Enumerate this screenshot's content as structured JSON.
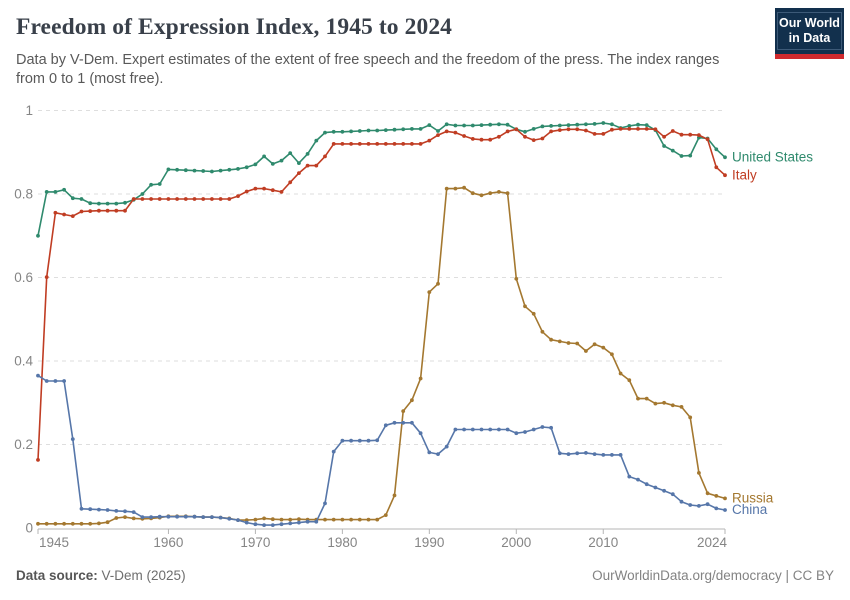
{
  "header": {
    "title": "Freedom of Expression Index, 1945 to 2024",
    "subtitle_lines": [
      "Data by V-Dem. Expert estimates of the extent of free speech and the freedom of the press. The index ranges",
      "from 0 to 1 (most free)."
    ],
    "logo": {
      "line1": "Our World",
      "line2": "in Data"
    }
  },
  "footer": {
    "source_label": "Data source:",
    "source_value": " V-Dem (2025)",
    "credit": "OurWorldinData.org/democracy | CC BY"
  },
  "chart_data": {
    "type": "line",
    "title": "Freedom of Expression Index, 1945 to 2024",
    "xlabel": "",
    "ylabel": "",
    "ylim": [
      0,
      1
    ],
    "grid": "horizontal-dashed",
    "markers": true,
    "legend_position": "line-end-labels",
    "xticks": [
      1945,
      1960,
      1970,
      1980,
      1990,
      2000,
      2010,
      2024
    ],
    "yticks": [
      0,
      0.2,
      0.4,
      0.6,
      0.8,
      1
    ],
    "x": [
      1945,
      1946,
      1947,
      1948,
      1949,
      1950,
      1951,
      1952,
      1953,
      1954,
      1955,
      1956,
      1957,
      1958,
      1959,
      1960,
      1961,
      1962,
      1963,
      1964,
      1965,
      1966,
      1967,
      1968,
      1969,
      1970,
      1971,
      1972,
      1973,
      1974,
      1975,
      1976,
      1977,
      1978,
      1979,
      1980,
      1981,
      1982,
      1983,
      1984,
      1985,
      1986,
      1987,
      1988,
      1989,
      1990,
      1991,
      1992,
      1993,
      1994,
      1995,
      1996,
      1997,
      1998,
      1999,
      2000,
      2001,
      2002,
      2003,
      2004,
      2005,
      2006,
      2007,
      2008,
      2009,
      2010,
      2011,
      2012,
      2013,
      2014,
      2015,
      2016,
      2017,
      2018,
      2019,
      2020,
      2021,
      2022,
      2023,
      2024
    ],
    "series": [
      {
        "name": "United States",
        "color": "#2f8a6d",
        "values": [
          0.7,
          0.805,
          0.805,
          0.81,
          0.79,
          0.788,
          0.778,
          0.777,
          0.777,
          0.777,
          0.779,
          0.786,
          0.8,
          0.822,
          0.824,
          0.859,
          0.858,
          0.857,
          0.856,
          0.855,
          0.854,
          0.856,
          0.858,
          0.86,
          0.864,
          0.871,
          0.89,
          0.872,
          0.88,
          0.898,
          0.874,
          0.896,
          0.928,
          0.947,
          0.949,
          0.949,
          0.95,
          0.951,
          0.952,
          0.952,
          0.953,
          0.954,
          0.955,
          0.956,
          0.956,
          0.965,
          0.951,
          0.967,
          0.964,
          0.964,
          0.964,
          0.965,
          0.966,
          0.967,
          0.966,
          0.955,
          0.949,
          0.956,
          0.962,
          0.963,
          0.964,
          0.965,
          0.966,
          0.967,
          0.968,
          0.97,
          0.967,
          0.958,
          0.963,
          0.966,
          0.965,
          0.953,
          0.915,
          0.904,
          0.891,
          0.892,
          0.935,
          0.933,
          0.907,
          0.888
        ]
      },
      {
        "name": "Italy",
        "color": "#c03d23",
        "values": [
          0.163,
          0.601,
          0.755,
          0.751,
          0.747,
          0.758,
          0.759,
          0.76,
          0.76,
          0.76,
          0.76,
          0.788,
          0.788,
          0.788,
          0.788,
          0.788,
          0.788,
          0.788,
          0.788,
          0.788,
          0.788,
          0.788,
          0.788,
          0.795,
          0.806,
          0.813,
          0.813,
          0.809,
          0.805,
          0.828,
          0.85,
          0.868,
          0.868,
          0.89,
          0.92,
          0.92,
          0.92,
          0.92,
          0.92,
          0.92,
          0.92,
          0.92,
          0.92,
          0.92,
          0.92,
          0.928,
          0.941,
          0.95,
          0.947,
          0.939,
          0.932,
          0.93,
          0.93,
          0.937,
          0.95,
          0.955,
          0.937,
          0.929,
          0.933,
          0.95,
          0.953,
          0.955,
          0.955,
          0.952,
          0.944,
          0.944,
          0.954,
          0.956,
          0.956,
          0.956,
          0.956,
          0.955,
          0.937,
          0.951,
          0.942,
          0.942,
          0.941,
          0.931,
          0.864,
          0.845
        ]
      },
      {
        "name": "Russia",
        "color": "#a47830",
        "values": [
          0.01,
          0.01,
          0.01,
          0.01,
          0.01,
          0.01,
          0.01,
          0.011,
          0.014,
          0.024,
          0.026,
          0.023,
          0.022,
          0.023,
          0.025,
          0.028,
          0.028,
          0.028,
          0.027,
          0.026,
          0.026,
          0.025,
          0.023,
          0.019,
          0.019,
          0.02,
          0.023,
          0.021,
          0.02,
          0.02,
          0.021,
          0.02,
          0.02,
          0.02,
          0.02,
          0.02,
          0.02,
          0.02,
          0.02,
          0.02,
          0.031,
          0.078,
          0.28,
          0.306,
          0.358,
          0.565,
          0.585,
          0.813,
          0.813,
          0.815,
          0.802,
          0.797,
          0.802,
          0.805,
          0.802,
          0.597,
          0.531,
          0.513,
          0.47,
          0.451,
          0.447,
          0.443,
          0.442,
          0.424,
          0.44,
          0.432,
          0.416,
          0.37,
          0.354,
          0.31,
          0.31,
          0.298,
          0.3,
          0.294,
          0.29,
          0.265,
          0.132,
          0.083,
          0.077,
          0.071
        ]
      },
      {
        "name": "China",
        "color": "#5676a9",
        "values": [
          0.365,
          0.352,
          0.352,
          0.352,
          0.213,
          0.046,
          0.045,
          0.044,
          0.043,
          0.041,
          0.04,
          0.038,
          0.026,
          0.026,
          0.027,
          0.027,
          0.027,
          0.027,
          0.027,
          0.026,
          0.026,
          0.025,
          0.022,
          0.019,
          0.013,
          0.009,
          0.007,
          0.007,
          0.009,
          0.011,
          0.013,
          0.015,
          0.015,
          0.059,
          0.183,
          0.209,
          0.209,
          0.209,
          0.209,
          0.21,
          0.246,
          0.252,
          0.252,
          0.252,
          0.227,
          0.181,
          0.177,
          0.195,
          0.236,
          0.236,
          0.236,
          0.236,
          0.236,
          0.236,
          0.236,
          0.227,
          0.23,
          0.236,
          0.242,
          0.24,
          0.179,
          0.177,
          0.179,
          0.18,
          0.177,
          0.175,
          0.175,
          0.175,
          0.123,
          0.116,
          0.105,
          0.097,
          0.089,
          0.081,
          0.063,
          0.055,
          0.053,
          0.057,
          0.047,
          0.043
        ]
      }
    ]
  }
}
